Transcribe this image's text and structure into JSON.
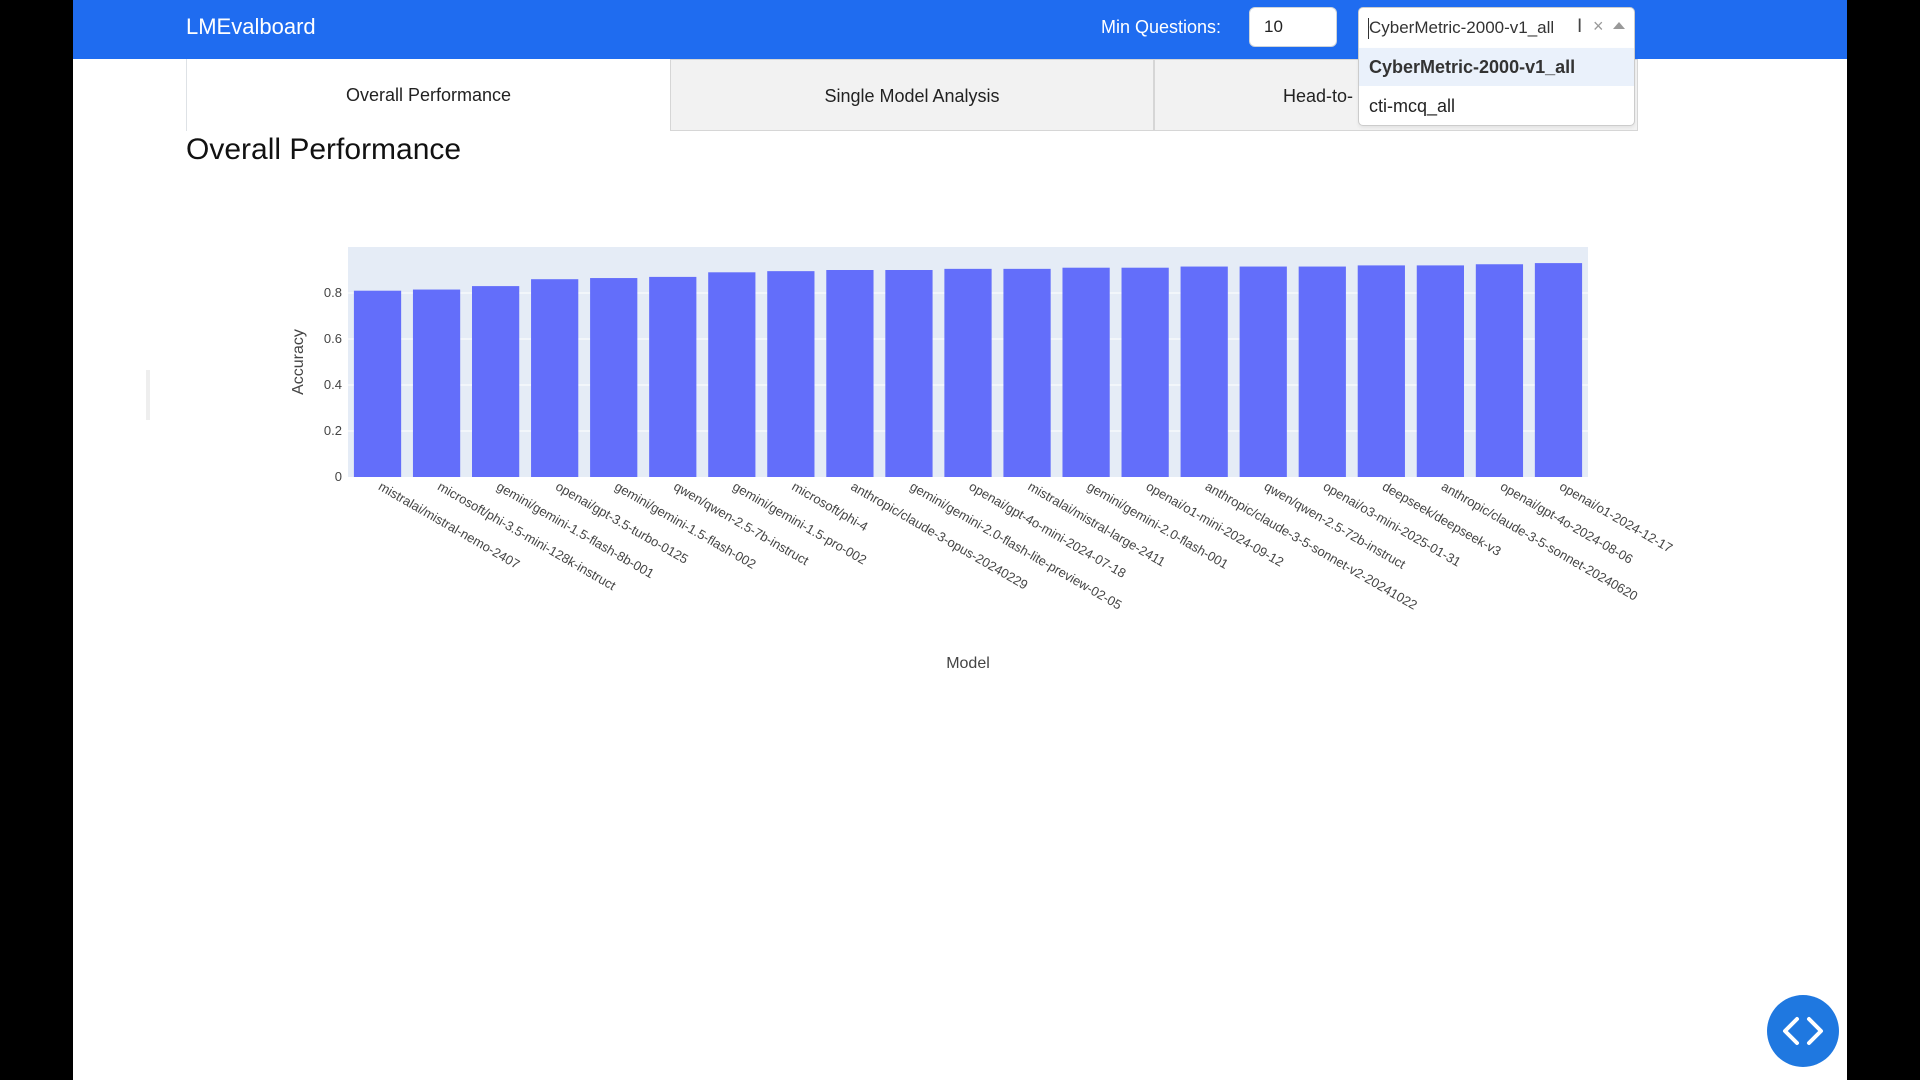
{
  "app": {
    "title": "LMEvalboard"
  },
  "header": {
    "min_questions_label": "Min Questions:",
    "min_questions_value": "10",
    "dataset_select": {
      "selected": "CyberMetric-2000-v1_all",
      "options": [
        "CyberMetric-2000-v1_all",
        "cti-mcq_all"
      ]
    }
  },
  "tabs": [
    {
      "label": "Overall Performance",
      "active": true
    },
    {
      "label": "Single Model Analysis",
      "active": false
    },
    {
      "label": "Head-to-",
      "active": false
    }
  ],
  "page_title": "Overall Performance",
  "colors": {
    "navbar": "#1f6cf0",
    "bar": "#636efa",
    "plot_bg": "#e5ecf6"
  },
  "icons": {
    "code_toggle": "code-icon",
    "clear": "clear-icon",
    "dropdown": "chevron-up-icon"
  },
  "chart_data": {
    "type": "bar",
    "title": "",
    "xlabel": "Model",
    "ylabel": "Accuracy",
    "ylim": [
      0,
      1
    ],
    "yticks": [
      0,
      0.2,
      0.4,
      0.6,
      0.8
    ],
    "ytick_labels": [
      "0",
      "0.2",
      "0.4",
      "0.6",
      "0.8"
    ],
    "grid": true,
    "categories": [
      "mistralai/mistral-nemo-2407",
      "microsoft/phi-3.5-mini-128k-instruct",
      "gemini/gemini-1.5-flash-8b-001",
      "openai/gpt-3.5-turbo-0125",
      "gemini/gemini-1.5-flash-002",
      "qwen/qwen-2.5-7b-instruct",
      "gemini/gemini-1.5-pro-002",
      "microsoft/phi-4",
      "anthropic/claude-3-opus-20240229",
      "gemini/gemini-2.0-flash-lite-preview-02-05",
      "openai/gpt-4o-mini-2024-07-18",
      "mistralai/mistral-large-2411",
      "gemini/gemini-2.0-flash-001",
      "openai/o1-mini-2024-09-12",
      "anthropic/claude-3-5-sonnet-v2-20241022",
      "qwen/qwen-2.5-72b-instruct",
      "openai/o3-mini-2025-01-31",
      "deepseek/deepseek-v3",
      "anthropic/claude-3-5-sonnet-20240620",
      "openai/gpt-4o-2024-08-06",
      "openai/o1-2024-12-17"
    ],
    "values": [
      0.81,
      0.815,
      0.83,
      0.86,
      0.865,
      0.87,
      0.89,
      0.895,
      0.9,
      0.9,
      0.905,
      0.905,
      0.91,
      0.91,
      0.915,
      0.915,
      0.915,
      0.92,
      0.92,
      0.925,
      0.93
    ]
  }
}
